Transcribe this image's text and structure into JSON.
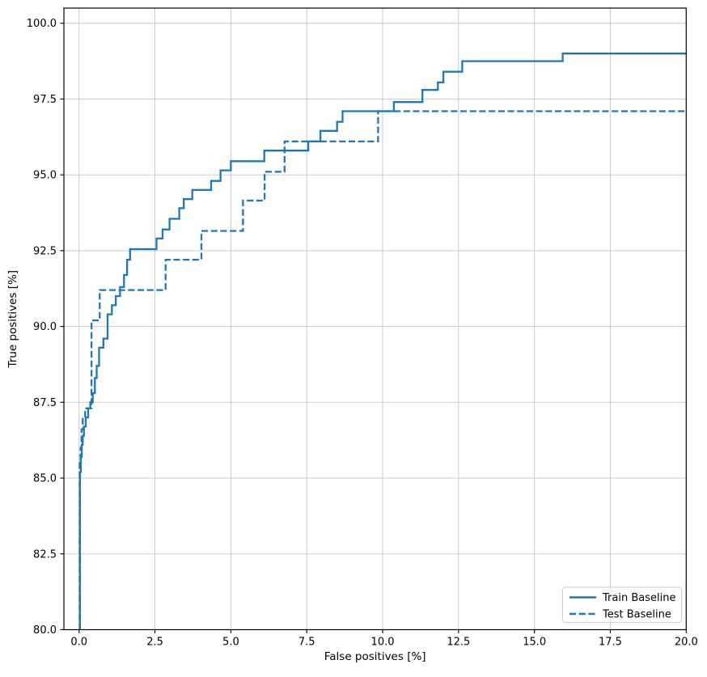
{
  "chart_data": {
    "type": "line",
    "subtype": "roc-step-curves",
    "title": "",
    "xlabel": "False positives [%]",
    "ylabel": "True positives [%]",
    "xlim": [
      -0.5,
      20
    ],
    "ylim": [
      80,
      100.5
    ],
    "xticks": [
      0,
      2.5,
      5,
      7.5,
      10,
      12.5,
      15,
      17.5,
      20
    ],
    "x_tick_labels": [
      "0.0",
      "2.5",
      "5.0",
      "7.5",
      "10.0",
      "12.5",
      "15.0",
      "17.5",
      "20.0"
    ],
    "yticks": [
      80,
      82.5,
      85,
      87.5,
      90,
      92.5,
      95,
      97.5,
      100
    ],
    "y_tick_labels": [
      "80.0",
      "82.5",
      "85.0",
      "87.5",
      "90.0",
      "92.5",
      "95.0",
      "97.5",
      "100.0"
    ],
    "grid": true,
    "grid_color": "#c6c6c6",
    "spine_color": "#000000",
    "background_color": "#ffffff",
    "accent_color": "#1f77b4",
    "legend_position": "lower right",
    "legend_entries": [
      "Train Baseline",
      "Test Baseline"
    ],
    "series": [
      {
        "name": "Train Baseline",
        "style": "solid",
        "color": "#1f77b4",
        "start": [
          0.03,
          80
        ],
        "end_x": 20,
        "step_points": [
          [
            0.03,
            85.2
          ],
          [
            0.06,
            85.7
          ],
          [
            0.09,
            86.1
          ],
          [
            0.12,
            86.4
          ],
          [
            0.16,
            86.7
          ],
          [
            0.22,
            87.0
          ],
          [
            0.3,
            87.3
          ],
          [
            0.37,
            87.5
          ],
          [
            0.45,
            87.8
          ],
          [
            0.52,
            88.3
          ],
          [
            0.58,
            88.7
          ],
          [
            0.66,
            89.3
          ],
          [
            0.8,
            89.6
          ],
          [
            0.94,
            90.4
          ],
          [
            1.08,
            90.7
          ],
          [
            1.21,
            91.0
          ],
          [
            1.35,
            91.3
          ],
          [
            1.48,
            91.7
          ],
          [
            1.58,
            92.2
          ],
          [
            1.68,
            92.55
          ],
          [
            2.55,
            92.9
          ],
          [
            2.75,
            93.2
          ],
          [
            2.98,
            93.55
          ],
          [
            3.3,
            93.9
          ],
          [
            3.45,
            94.2
          ],
          [
            3.73,
            94.5
          ],
          [
            4.35,
            94.8
          ],
          [
            4.66,
            95.15
          ],
          [
            5.0,
            95.45
          ],
          [
            6.1,
            95.8
          ],
          [
            7.55,
            96.1
          ],
          [
            7.95,
            96.45
          ],
          [
            8.5,
            96.75
          ],
          [
            8.68,
            97.1
          ],
          [
            10.37,
            97.4
          ],
          [
            11.31,
            97.8
          ],
          [
            11.82,
            98.05
          ],
          [
            12.0,
            98.4
          ],
          [
            12.62,
            98.75
          ],
          [
            15.93,
            99.0
          ]
        ]
      },
      {
        "name": "Test Baseline",
        "style": "dashed",
        "color": "#1f77b4",
        "start": [
          0.02,
          80
        ],
        "end_x": 20,
        "step_points": [
          [
            0.02,
            85.5
          ],
          [
            0.05,
            86.0
          ],
          [
            0.08,
            86.6
          ],
          [
            0.12,
            87.0
          ],
          [
            0.2,
            87.3
          ],
          [
            0.41,
            90.2
          ],
          [
            0.68,
            91.2
          ],
          [
            2.85,
            92.2
          ],
          [
            4.03,
            93.15
          ],
          [
            5.4,
            94.15
          ],
          [
            6.11,
            95.1
          ],
          [
            6.77,
            96.1
          ],
          [
            9.85,
            97.1
          ]
        ]
      }
    ]
  },
  "layout_constants_note": "axes box and fonts are layout, kept in script"
}
